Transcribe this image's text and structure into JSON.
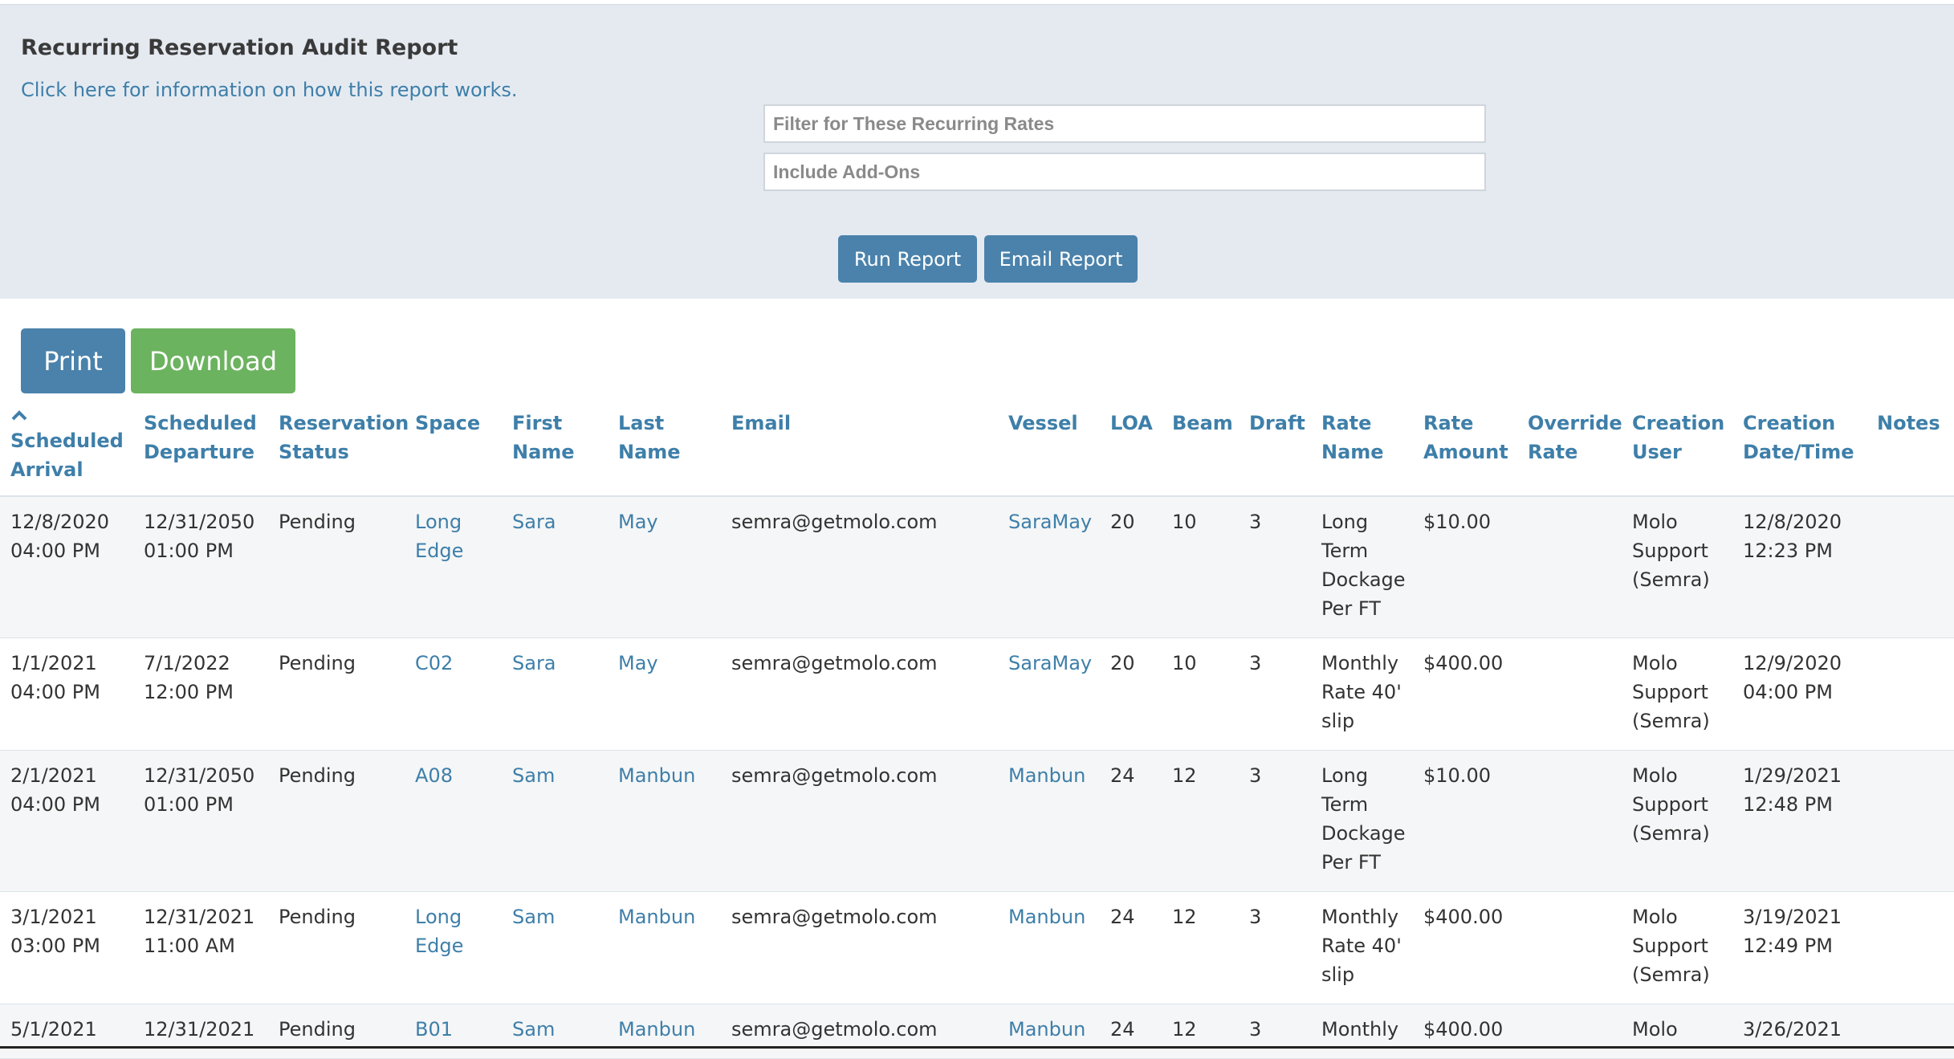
{
  "report": {
    "title": "Recurring Reservation Audit Report",
    "info_link": "Click here for information on how this report works.",
    "filter_rates_placeholder": "Filter for These Recurring Rates",
    "filter_addons_placeholder": "Include Add-Ons",
    "run_label": "Run Report",
    "email_label": "Email Report"
  },
  "actions": {
    "print_label": "Print",
    "download_label": "Download"
  },
  "colors": {
    "accent": "#4a82ab",
    "link": "#3e7fa9",
    "download": "#6cb35f",
    "panel": "#e5eaf1"
  },
  "table": {
    "sort_icon": "chevron-up-icon",
    "columns": [
      {
        "l1": "Scheduled",
        "l2": "Arrival",
        "sorted": true
      },
      {
        "l1": "Scheduled",
        "l2": "Departure"
      },
      {
        "l1": "Reservation",
        "l2": "Status"
      },
      {
        "l1": "Space",
        "l2": ""
      },
      {
        "l1": "First",
        "l2": "Name"
      },
      {
        "l1": "Last",
        "l2": "Name"
      },
      {
        "l1": "Email",
        "l2": ""
      },
      {
        "l1": "Vessel",
        "l2": ""
      },
      {
        "l1": "LOA",
        "l2": ""
      },
      {
        "l1": "Beam",
        "l2": ""
      },
      {
        "l1": "Draft",
        "l2": ""
      },
      {
        "l1": "Rate",
        "l2": "Name"
      },
      {
        "l1": "Rate",
        "l2": "Amount"
      },
      {
        "l1": "Override",
        "l2": "Rate"
      },
      {
        "l1": "Creation",
        "l2": "User"
      },
      {
        "l1": "Creation",
        "l2": "Date/Time"
      },
      {
        "l1": "Notes",
        "l2": ""
      }
    ],
    "rows": [
      {
        "arrival": [
          "12/8/2020",
          "04:00 PM"
        ],
        "departure": [
          "12/31/2050",
          "01:00 PM"
        ],
        "status": "Pending",
        "space": [
          "Long",
          "Edge"
        ],
        "first": "Sara",
        "last": "May",
        "email": "semra@getmolo.com",
        "vessel": "SaraMay",
        "loa": "20",
        "beam": "10",
        "draft": "3",
        "rate_name": [
          "Long",
          "Term",
          "Dockage",
          "Per FT"
        ],
        "rate_amount": "$10.00",
        "override": "",
        "user": [
          "Molo",
          "Support",
          "(Semra)"
        ],
        "created": [
          "12/8/2020",
          "12:23 PM"
        ],
        "notes": ""
      },
      {
        "arrival": [
          "1/1/2021",
          "04:00 PM"
        ],
        "departure": [
          "7/1/2022",
          "12:00 PM"
        ],
        "status": "Pending",
        "space": [
          "C02"
        ],
        "first": "Sara",
        "last": "May",
        "email": "semra@getmolo.com",
        "vessel": "SaraMay",
        "loa": "20",
        "beam": "10",
        "draft": "3",
        "rate_name": [
          "Monthly",
          "Rate 40'",
          "slip"
        ],
        "rate_amount": "$400.00",
        "override": "",
        "user": [
          "Molo",
          "Support",
          "(Semra)"
        ],
        "created": [
          "12/9/2020",
          "04:00 PM"
        ],
        "notes": ""
      },
      {
        "arrival": [
          "2/1/2021",
          "04:00 PM"
        ],
        "departure": [
          "12/31/2050",
          "01:00 PM"
        ],
        "status": "Pending",
        "space": [
          "A08"
        ],
        "first": "Sam",
        "last": "Manbun",
        "email": "semra@getmolo.com",
        "vessel": "Manbun",
        "loa": "24",
        "beam": "12",
        "draft": "3",
        "rate_name": [
          "Long",
          "Term",
          "Dockage",
          "Per FT"
        ],
        "rate_amount": "$10.00",
        "override": "",
        "user": [
          "Molo",
          "Support",
          "(Semra)"
        ],
        "created": [
          "1/29/2021",
          "12:48 PM"
        ],
        "notes": ""
      },
      {
        "arrival": [
          "3/1/2021",
          "03:00 PM"
        ],
        "departure": [
          "12/31/2021",
          "11:00 AM"
        ],
        "status": "Pending",
        "space": [
          "Long",
          "Edge"
        ],
        "first": "Sam",
        "last": "Manbun",
        "email": "semra@getmolo.com",
        "vessel": "Manbun",
        "loa": "24",
        "beam": "12",
        "draft": "3",
        "rate_name": [
          "Monthly",
          "Rate 40'",
          "slip"
        ],
        "rate_amount": "$400.00",
        "override": "",
        "user": [
          "Molo",
          "Support",
          "(Semra)"
        ],
        "created": [
          "3/19/2021",
          "12:49 PM"
        ],
        "notes": ""
      },
      {
        "arrival": [
          "5/1/2021"
        ],
        "departure": [
          "12/31/2021"
        ],
        "status": "Pending",
        "space": [
          "B01"
        ],
        "first": "Sam",
        "last": "Manbun",
        "email": "semra@getmolo.com",
        "vessel": "Manbun",
        "loa": "24",
        "beam": "12",
        "draft": "3",
        "rate_name": [
          "Monthly"
        ],
        "rate_amount": "$400.00",
        "override": "",
        "user": [
          "Molo"
        ],
        "created": [
          "3/26/2021"
        ],
        "notes": ""
      }
    ]
  }
}
